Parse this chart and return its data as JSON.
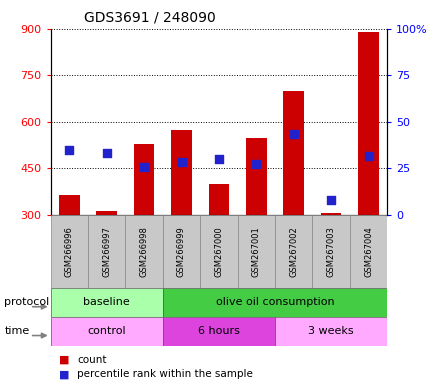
{
  "title": "GDS3691 / 248090",
  "samples": [
    "GSM266996",
    "GSM266997",
    "GSM266998",
    "GSM266999",
    "GSM267000",
    "GSM267001",
    "GSM267002",
    "GSM267003",
    "GSM267004"
  ],
  "bar_values": [
    365,
    312,
    530,
    575,
    400,
    548,
    700,
    305,
    890
  ],
  "bar_bottom": [
    300,
    300,
    300,
    300,
    300,
    300,
    300,
    300,
    300
  ],
  "percentile_left_values": [
    510,
    500,
    455,
    470,
    480,
    465,
    560,
    350,
    490
  ],
  "bar_color": "#cc0000",
  "dot_color": "#2222cc",
  "ylim_left": [
    300,
    900
  ],
  "ylim_right": [
    0,
    100
  ],
  "yticks_left": [
    300,
    450,
    600,
    750,
    900
  ],
  "yticks_right": [
    0,
    25,
    50,
    75,
    100
  ],
  "ytick_right_labels": [
    "0",
    "25",
    "50",
    "75",
    "100%"
  ],
  "protocol_groups": [
    {
      "label": "baseline",
      "start": 0,
      "end": 3,
      "color": "#aaffaa"
    },
    {
      "label": "olive oil consumption",
      "start": 3,
      "end": 9,
      "color": "#44cc44"
    }
  ],
  "time_groups": [
    {
      "label": "control",
      "start": 0,
      "end": 3,
      "color": "#ffaaff"
    },
    {
      "label": "6 hours",
      "start": 3,
      "end": 6,
      "color": "#dd44dd"
    },
    {
      "label": "3 weeks",
      "start": 6,
      "end": 9,
      "color": "#ffaaff"
    }
  ],
  "legend_count_color": "#cc0000",
  "legend_dot_color": "#2222cc",
  "protocol_label": "protocol",
  "time_label": "time",
  "background_color": "#ffffff",
  "tick_label_area_color": "#c8c8c8",
  "dot_size": 28
}
